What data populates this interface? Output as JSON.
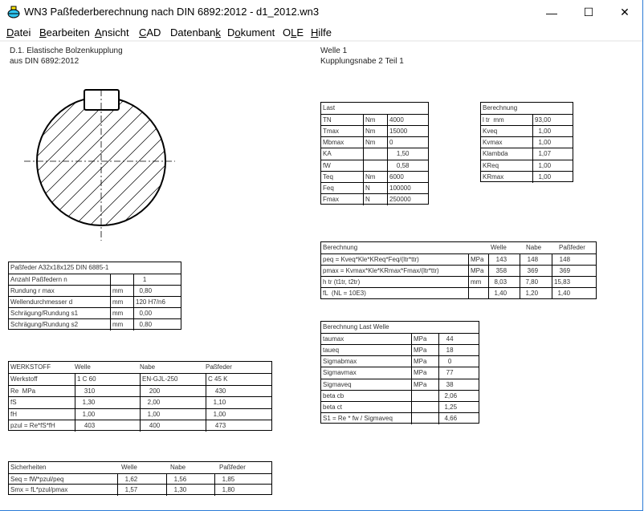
{
  "window": {
    "title": "WN3  Paßfederberechnung nach DIN 6892:2012  -  d1_2012.wn3",
    "controls": {
      "minimize": "—",
      "maximize": "☐",
      "close": "✕"
    }
  },
  "menu": [
    {
      "key": "D",
      "rest": "atei"
    },
    {
      "key": "B",
      "rest": "earbeiten"
    },
    {
      "key": "A",
      "rest": "nsicht"
    },
    {
      "key": "C",
      "rest": "AD"
    },
    {
      "pre": "Datenban",
      "key": "k",
      "rest": ""
    },
    {
      "pre": "D",
      "key": "o",
      "rest": "kument"
    },
    {
      "pre": "O",
      "key": "L",
      "rest": "E"
    },
    {
      "key": "H",
      "rest": "ilfe"
    }
  ],
  "header": {
    "line1": "D.1. Elastische Bolzenkupplung",
    "line2": "aus DIN 6892:2012",
    "right1": "Welle  1",
    "right2": "Kupplungsnabe  2  Teil 1"
  },
  "tables": {
    "last": {
      "title": "Last",
      "rows": [
        [
          "TN",
          "Nm",
          "4000"
        ],
        [
          "Tmax",
          "Nm",
          "15000"
        ],
        [
          "Mbmax",
          "Nm",
          "0"
        ],
        [
          "KA",
          "",
          "    1,50"
        ],
        [
          "fW",
          "",
          "    0,58"
        ],
        [
          "Teq",
          "Nm",
          "6000"
        ],
        [
          "Feq",
          "N",
          "100000"
        ],
        [
          "Fmax",
          "N",
          "250000"
        ]
      ]
    },
    "berechnung_k": {
      "title": "Berechnung",
      "rows": [
        [
          "l tr  mm",
          "93,00"
        ],
        [
          "Kveq",
          "  1,00"
        ],
        [
          "Kvmax",
          "  1,00"
        ],
        [
          "Klambda",
          "  1,07"
        ],
        [
          "KReq",
          "  1,00"
        ],
        [
          "KRmax",
          "  1,00"
        ]
      ]
    },
    "berechnung_p": {
      "title": "Berechnung",
      "headers": [
        "Welle",
        "Nabe",
        "Paßfeder"
      ],
      "rows": [
        [
          "peq = Kveq*Kle*KReq*Feq/(ltr*ttr)",
          "MPa",
          "   143",
          "   148",
          "   148"
        ],
        [
          "pmax = Kvmax*Kle*KRmax*Fmax/(ltr*ttr)",
          "MPa",
          "   358",
          "   369",
          "   369"
        ],
        [
          "h tr (t1tr, t2tr)",
          "mm",
          "  8,03",
          "  7,80",
          "15,83"
        ],
        [
          "fL  (NL = 10E3)",
          "",
          "  1,40",
          "  1,20",
          "  1,40"
        ]
      ]
    },
    "last_welle": {
      "title": "Berechnung Last Welle",
      "rows": [
        [
          "taumax",
          "MPa",
          "   44"
        ],
        [
          "taueq",
          "MPa",
          "   18"
        ],
        [
          "Sigmabmax",
          "MPa",
          "    0"
        ],
        [
          "Sigmavmax",
          "MPa",
          "   77"
        ],
        [
          "Sigmaveq",
          "MPa",
          "   38"
        ],
        [
          "beta cb",
          "",
          "  2,06"
        ],
        [
          "beta ct",
          "",
          "  1,25"
        ],
        [
          "S1 = Re * fw / Sigmaveq",
          "",
          "  4,66"
        ]
      ]
    },
    "passfeder": {
      "title": "Paßfeder A32x18x125 DIN 6885-1",
      "rows": [
        [
          "Anzahl Paßfedern n",
          "",
          "    1"
        ],
        [
          "Rundung r max",
          "mm",
          "  0,80"
        ],
        [
          "Wellendurchmesser d",
          "mm",
          "120 H7/n6"
        ],
        [
          "Schrägung/Rundung s1",
          "mm",
          "  0,00"
        ],
        [
          "Schrägung/Rundung s2",
          "mm",
          "  0,80"
        ]
      ]
    },
    "werkstoff": {
      "title": "WERKSTOFF",
      "headers": [
        "Welle",
        "Nabe",
        "Paßfeder"
      ],
      "rows": [
        [
          "Werkstoff",
          "1 C 60",
          "EN-GJL-250",
          "C 45 K"
        ],
        [
          "Re  MPa",
          "    310",
          "    200",
          "    430"
        ],
        [
          "fS",
          "   1,30",
          "   2,00",
          "   1,10"
        ],
        [
          "fH",
          "   1,00",
          "   1,00",
          "   1,00"
        ],
        [
          "pzul = Re*fS*fH",
          "    403",
          "    400",
          "    473"
        ]
      ]
    },
    "sicherheiten": {
      "title": "Sicherheiten",
      "headers": [
        "Welle",
        "Nabe",
        "Paßfeder"
      ],
      "rows": [
        [
          "Seq = fW*pzul/peq",
          "   1,62",
          "   1,56",
          "   1,85"
        ],
        [
          "Smx = fL*pzul/pmax",
          "   1,57",
          "   1,30",
          "   1,80"
        ]
      ]
    }
  },
  "colors": {
    "accent": "#2b7bd6",
    "icon": "#2fc4ee"
  }
}
